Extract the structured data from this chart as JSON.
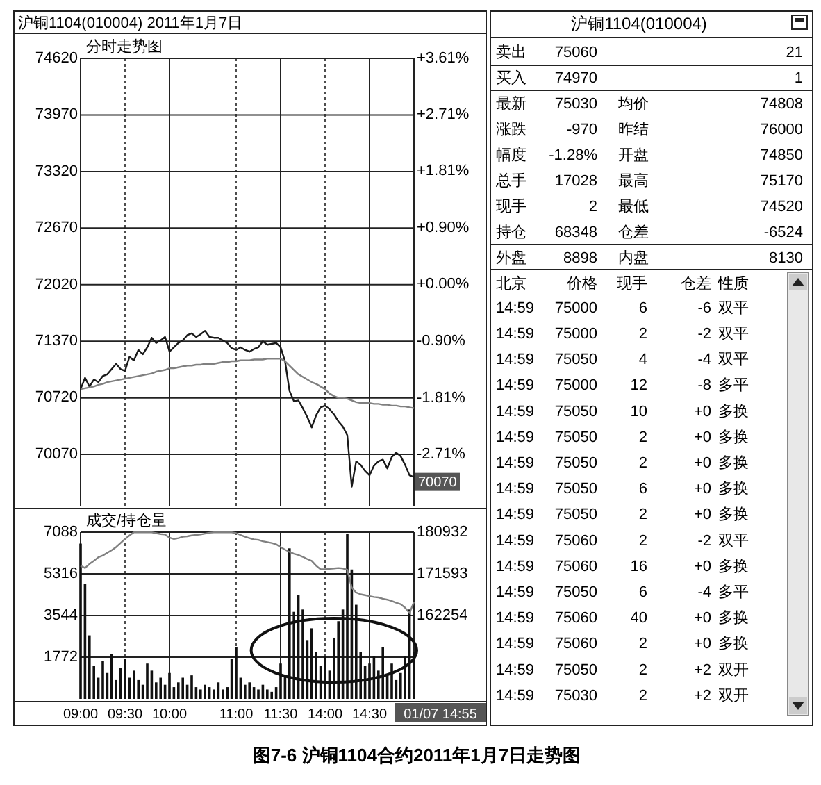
{
  "chart_data": [
    {
      "type": "line",
      "title": "沪铜1104(010004) 2011年1月7日",
      "subtitle": "分时走势图",
      "categories": [
        null,
        null,
        null,
        null,
        null,
        null,
        null,
        null,
        null,
        null,
        null,
        null,
        null,
        null,
        null,
        null,
        null,
        null,
        null,
        null,
        null,
        null,
        null,
        null,
        null,
        null,
        null,
        null,
        null,
        null,
        null,
        null,
        null,
        null,
        null,
        null,
        null,
        null,
        null,
        null,
        null,
        null,
        null,
        null,
        null,
        null,
        null,
        null,
        null,
        null,
        null,
        null,
        null,
        null,
        null,
        null,
        null,
        null,
        null,
        null,
        null,
        null,
        null,
        null,
        null,
        null,
        null,
        null,
        null,
        null,
        null,
        null,
        null,
        null,
        null,
        null
      ],
      "tick_labels": "y",
      "ylim": [
        69480,
        74620
      ],
      "yticks": [
        74620,
        73970,
        73320,
        72670,
        72020,
        71370,
        70720,
        70070
      ],
      "y2lim": [
        -3.53,
        3.61
      ],
      "y2ticks": [
        {
          "value": 3.61,
          "label": "+3.61%"
        },
        {
          "value": 2.71,
          "label": "+2.71%"
        },
        {
          "value": 1.81,
          "label": "+1.81%"
        },
        {
          "value": 0.9,
          "label": "+0.90%"
        },
        {
          "value": 0,
          "label": "+0.00%"
        },
        {
          "value": -0.9,
          "label": "-0.90%"
        },
        {
          "value": -1.81,
          "label": "-1.81%"
        },
        {
          "value": -2.71,
          "label": "-2.71%"
        }
      ],
      "grid": true,
      "series": [
        {
          "color": "#1a1a1a",
          "values": [
            70820,
            70950,
            70850,
            70930,
            70900,
            70970,
            70990,
            71050,
            71110,
            71050,
            71030,
            71190,
            71150,
            71270,
            71220,
            71300,
            71410,
            71350,
            71380,
            71420,
            71250,
            71300,
            71350,
            71380,
            71440,
            71460,
            71420,
            71450,
            71490,
            71420,
            71410,
            71410,
            71380,
            71350,
            71290,
            71270,
            71300,
            71270,
            71250,
            71280,
            71300,
            71370,
            71330,
            71340,
            71350,
            71300,
            71140,
            70800,
            70680,
            70690,
            70600,
            70500,
            70380,
            70520,
            70610,
            70630,
            70590,
            70530,
            70450,
            70390,
            70290,
            69700,
            69990,
            69950,
            69880,
            69830,
            69940,
            69990,
            70010,
            69910,
            70040,
            70090,
            70050,
            69950,
            69830,
            69810
          ]
        },
        {
          "color": "#808080",
          "values": [
            70820,
            70830,
            70840,
            70850,
            70870,
            70880,
            70900,
            70910,
            70920,
            70930,
            70940,
            70950,
            70960,
            70970,
            70980,
            70990,
            71000,
            71020,
            71030,
            71040,
            71060,
            71060,
            71070,
            71080,
            71090,
            71090,
            71100,
            71100,
            71110,
            71110,
            71110,
            71120,
            71130,
            71130,
            71140,
            71140,
            71150,
            71150,
            71150,
            71160,
            71160,
            71160,
            71170,
            71170,
            71170,
            71170,
            71140,
            71090,
            71040,
            70990,
            70960,
            70930,
            70900,
            70880,
            70850,
            70820,
            70770,
            70740,
            70720,
            70720,
            70710,
            70690,
            70670,
            70660,
            70660,
            70660,
            70650,
            70650,
            70640,
            70640,
            70630,
            70630,
            70620,
            70620,
            70610,
            70600
          ]
        }
      ],
      "annotations": [
        "70070",
        "图7-6 沪铜1104合约2011年1月7日走势图"
      ]
    },
    {
      "type": "bar",
      "title": "成交/持仓量",
      "categories": [
        "09:00",
        null,
        null,
        null,
        null,
        null,
        null,
        null,
        null,
        null,
        "09:30",
        null,
        null,
        null,
        null,
        null,
        null,
        null,
        null,
        null,
        "10:00",
        null,
        null,
        null,
        null,
        null,
        null,
        null,
        null,
        null,
        null,
        null,
        null,
        null,
        null,
        "11:00",
        null,
        null,
        null,
        null,
        null,
        null,
        null,
        null,
        null,
        "11:30",
        null,
        null,
        null,
        null,
        null,
        null,
        null,
        null,
        null,
        "14:00",
        null,
        null,
        null,
        null,
        null,
        null,
        null,
        null,
        null,
        "14:30",
        null,
        null,
        null,
        null,
        null,
        null,
        null,
        null,
        null,
        null
      ],
      "ylim": [
        0,
        7088
      ],
      "yticks": [
        1772,
        3544,
        5316,
        7088
      ],
      "y2lim": [
        143576,
        180932
      ],
      "y2ticks": [
        162254,
        171593,
        180932
      ],
      "grid": true,
      "series": [
        {
          "color": "#111111",
          "values": [
            6600,
            4900,
            2700,
            1400,
            900,
            1600,
            1100,
            1900,
            800,
            1300,
            1700,
            900,
            1200,
            800,
            600,
            1500,
            1200,
            700,
            900,
            600,
            1100,
            500,
            700,
            900,
            600,
            1000,
            500,
            400,
            600,
            500,
            400,
            700,
            400,
            500,
            1700,
            2200,
            900,
            600,
            700,
            500,
            400,
            600,
            400,
            300,
            500,
            1500,
            1000,
            6400,
            3700,
            4400,
            3800,
            2500,
            3000,
            2000,
            1400,
            1800,
            1200,
            2600,
            3300,
            3800,
            7000,
            5500,
            4000,
            2000,
            1400,
            1500,
            1800,
            1200,
            2200,
            1000,
            1500,
            800,
            1100,
            1800,
            3800,
            2000
          ]
        },
        {
          "type": "line",
          "axis": "y2",
          "color": "#808080",
          "values": [
            173400,
            172900,
            173800,
            174500,
            175300,
            175700,
            176300,
            176900,
            177600,
            178500,
            179400,
            180200,
            180900,
            180900,
            180900,
            180900,
            180900,
            180700,
            180500,
            180400,
            179700,
            179400,
            179600,
            179900,
            180000,
            180200,
            180300,
            180400,
            180600,
            180800,
            180900,
            180900,
            180900,
            180900,
            180900,
            180700,
            180300,
            179900,
            179600,
            179300,
            179200,
            178900,
            178700,
            178500,
            178200,
            177600,
            177000,
            176500,
            176100,
            175800,
            175400,
            174900,
            174500,
            173400,
            172600,
            172600,
            172700,
            172800,
            172900,
            172800,
            172500,
            168500,
            167400,
            167000,
            166800,
            166600,
            166400,
            166300,
            166000,
            165800,
            165500,
            165100,
            164800,
            164000,
            162800,
            165300
          ]
        }
      ],
      "annotations": [
        "01/07 14:55"
      ]
    },
    {
      "type": "other",
      "title": "沪铜1104(010004)",
      "annotations": [
        "卖出",
        "75060",
        "21",
        "买入",
        "74970",
        "1",
        "最新",
        "75030",
        "均价",
        "74808",
        "涨跌",
        "-970",
        "昨结",
        "76000",
        "幅度",
        "-1.28%",
        "开盘",
        "74850",
        "总手",
        "17028",
        "最高",
        "75170",
        "现手",
        "2",
        "最低",
        "74520",
        "持仓",
        "68348",
        "仓差",
        "-6524",
        "外盘",
        "8898",
        "内盘",
        "8130",
        "北京",
        "价格",
        "现手",
        "仓差",
        "性质",
        "14:59",
        "75000",
        "6",
        "-6",
        "双平",
        "14:59",
        "75000",
        "2",
        "-2",
        "双平",
        "14:59",
        "75050",
        "4",
        "-4",
        "双平",
        "14:59",
        "75000",
        "12",
        "-8",
        "多平",
        "14:59",
        "75050",
        "10",
        "+0",
        "多换",
        "14:59",
        "75050",
        "2",
        "+0",
        "多换",
        "14:59",
        "75050",
        "2",
        "+0",
        "多换",
        "14:59",
        "75050",
        "6",
        "+0",
        "多换",
        "14:59",
        "75050",
        "2",
        "+0",
        "多换",
        "14:59",
        "75060",
        "2",
        "-2",
        "双平",
        "14:59",
        "75060",
        "16",
        "+0",
        "多换",
        "14:59",
        "75050",
        "6",
        "-4",
        "多平",
        "14:59",
        "75060",
        "40",
        "+0",
        "多换",
        "14:59",
        "75060",
        "2",
        "+0",
        "多换",
        "14:59",
        "75050",
        "2",
        "+2",
        "双开",
        "14:59",
        "75030",
        "2",
        "+2",
        "双开"
      ]
    }
  ]
}
